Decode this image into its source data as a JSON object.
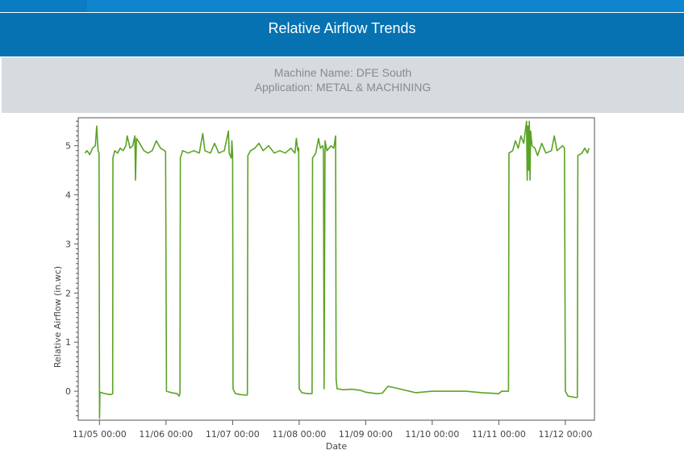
{
  "header": {
    "title": "Relative Airflow Trends"
  },
  "info": {
    "machine_name": "Machine Name: DFE South",
    "application": "Application: METAL & MACHINING"
  },
  "colors": {
    "header": "#0672b2",
    "topbar": "#0e85cc",
    "info_band": "#d5dbde",
    "series": "#5aa324"
  },
  "chart_data": {
    "type": "line",
    "title": "",
    "xlabel": "Date",
    "ylabel": "Relative Airflow (in.wc)",
    "ylim": [
      -0.59,
      5.57
    ],
    "xlim": [
      "11/04 16:20",
      "11/12 10:30"
    ],
    "yticks": [
      0,
      1,
      2,
      3,
      4,
      5
    ],
    "xticks": [
      "11/05 00:00",
      "11/06 00:00",
      "11/07 00:00",
      "11/08 00:00",
      "11/09 00:00",
      "11/10 00:00",
      "11/11 00:00",
      "11/12 00:00"
    ],
    "grid": false,
    "series": [
      {
        "points": [
          [
            "11/04 18:43",
            4.85
          ],
          [
            "11/04 19:30",
            4.9
          ],
          [
            "11/04 20:30",
            4.82
          ],
          [
            "11/04 21:30",
            4.95
          ],
          [
            "11/04 22:30",
            5.0
          ],
          [
            "11/04 23:00",
            5.4
          ],
          [
            "11/04 23:30",
            4.9
          ],
          [
            "11/04 23:50",
            4.85
          ],
          [
            "11/05 00:00",
            -0.55
          ],
          [
            "11/05 00:10",
            -0.02
          ],
          [
            "11/05 02:00",
            -0.05
          ],
          [
            "11/05 04:00",
            -0.07
          ],
          [
            "11/05 04:45",
            -0.05
          ],
          [
            "11/05 04:50",
            4.75
          ],
          [
            "11/05 05:30",
            4.9
          ],
          [
            "11/05 06:30",
            4.85
          ],
          [
            "11/05 07:30",
            4.95
          ],
          [
            "11/05 08:30",
            4.9
          ],
          [
            "11/05 09:30",
            5.0
          ],
          [
            "11/05 10:00",
            5.2
          ],
          [
            "11/05 11:00",
            4.95
          ],
          [
            "11/05 12:00",
            5.0
          ],
          [
            "11/05 12:45",
            5.2
          ],
          [
            "11/05 13:00",
            4.3
          ],
          [
            "11/05 13:20",
            5.15
          ],
          [
            "11/05 14:30",
            5.05
          ],
          [
            "11/05 16:00",
            4.9
          ],
          [
            "11/05 17:30",
            4.85
          ],
          [
            "11/05 19:00",
            4.9
          ],
          [
            "11/05 20:30",
            5.1
          ],
          [
            "11/05 22:00",
            4.95
          ],
          [
            "11/05 23:30",
            4.9
          ],
          [
            "11/05 23:50",
            4.88
          ],
          [
            "11/06 00:10",
            0.0
          ],
          [
            "11/06 02:00",
            -0.03
          ],
          [
            "11/06 04:00",
            -0.05
          ],
          [
            "11/06 04:40",
            -0.1
          ],
          [
            "11/06 05:00",
            -0.05
          ],
          [
            "11/06 05:10",
            4.75
          ],
          [
            "11/06 06:00",
            4.9
          ],
          [
            "11/06 08:00",
            4.85
          ],
          [
            "11/06 10:00",
            4.9
          ],
          [
            "11/06 12:00",
            4.85
          ],
          [
            "11/06 13:15",
            5.25
          ],
          [
            "11/06 14:00",
            4.9
          ],
          [
            "11/06 16:00",
            4.85
          ],
          [
            "11/06 17:30",
            5.05
          ],
          [
            "11/06 19:00",
            4.85
          ],
          [
            "11/06 21:00",
            4.9
          ],
          [
            "11/06 22:30",
            5.3
          ],
          [
            "11/06 22:45",
            4.85
          ],
          [
            "11/06 23:30",
            4.75
          ],
          [
            "11/06 23:45",
            5.1
          ],
          [
            "11/07 00:00",
            4.8
          ],
          [
            "11/07 00:10",
            0.05
          ],
          [
            "11/07 01:00",
            -0.05
          ],
          [
            "11/07 03:00",
            -0.07
          ],
          [
            "11/07 05:00",
            -0.08
          ],
          [
            "11/07 05:20",
            -0.07
          ],
          [
            "11/07 05:30",
            4.8
          ],
          [
            "11/07 06:30",
            4.9
          ],
          [
            "11/07 08:00",
            4.95
          ],
          [
            "11/07 09:30",
            5.05
          ],
          [
            "11/07 11:00",
            4.9
          ],
          [
            "11/07 13:00",
            5.0
          ],
          [
            "11/07 15:00",
            4.85
          ],
          [
            "11/07 17:00",
            4.9
          ],
          [
            "11/07 19:00",
            4.85
          ],
          [
            "11/07 21:00",
            4.95
          ],
          [
            "11/07 22:30",
            4.85
          ],
          [
            "11/07 23:00",
            5.15
          ],
          [
            "11/07 23:30",
            4.9
          ],
          [
            "11/07 23:50",
            4.95
          ],
          [
            "11/08 00:00",
            0.05
          ],
          [
            "11/08 01:00",
            -0.03
          ],
          [
            "11/08 03:00",
            -0.05
          ],
          [
            "11/08 04:40",
            -0.05
          ],
          [
            "11/08 04:50",
            4.75
          ],
          [
            "11/08 06:00",
            4.85
          ],
          [
            "11/08 07:00",
            5.15
          ],
          [
            "11/08 07:40",
            4.95
          ],
          [
            "11/08 08:30",
            5.0
          ],
          [
            "11/08 08:45",
            4.9
          ],
          [
            "11/08 09:00",
            0.05
          ],
          [
            "11/08 09:20",
            5.1
          ],
          [
            "11/08 10:00",
            4.9
          ],
          [
            "11/08 11:30",
            5.0
          ],
          [
            "11/08 12:30",
            4.95
          ],
          [
            "11/08 13:10",
            5.2
          ],
          [
            "11/08 13:20",
            0.25
          ],
          [
            "11/08 13:40",
            0.05
          ],
          [
            "11/08 16:00",
            0.03
          ],
          [
            "11/08 19:00",
            0.04
          ],
          [
            "11/08 22:00",
            0.02
          ],
          [
            "11/09 00:00",
            -0.02
          ],
          [
            "11/09 04:00",
            -0.05
          ],
          [
            "11/09 06:00",
            -0.04
          ],
          [
            "11/09 08:00",
            0.1
          ],
          [
            "11/09 12:00",
            0.05
          ],
          [
            "11/09 18:00",
            -0.03
          ],
          [
            "11/10 00:00",
            0.0
          ],
          [
            "11/10 06:00",
            0.0
          ],
          [
            "11/10 12:00",
            0.0
          ],
          [
            "11/10 18:00",
            -0.03
          ],
          [
            "11/11 00:00",
            -0.05
          ],
          [
            "11/11 01:00",
            0.0
          ],
          [
            "11/11 03:30",
            0.0
          ],
          [
            "11/11 03:40",
            4.85
          ],
          [
            "11/11 05:00",
            4.9
          ],
          [
            "11/11 06:00",
            5.1
          ],
          [
            "11/11 07:00",
            4.95
          ],
          [
            "11/11 08:00",
            5.2
          ],
          [
            "11/11 09:00",
            5.05
          ],
          [
            "11/11 10:00",
            5.5
          ],
          [
            "11/11 10:15",
            4.3
          ],
          [
            "11/11 10:30",
            5.4
          ],
          [
            "11/11 10:45",
            4.5
          ],
          [
            "11/11 11:00",
            5.5
          ],
          [
            "11/11 11:15",
            4.3
          ],
          [
            "11/11 11:30",
            5.3
          ],
          [
            "11/11 12:00",
            5.0
          ],
          [
            "11/11 13:00",
            4.95
          ],
          [
            "11/11 14:00",
            4.8
          ],
          [
            "11/11 15:30",
            5.05
          ],
          [
            "11/11 17:00",
            4.85
          ],
          [
            "11/11 19:00",
            4.9
          ],
          [
            "11/11 20:00",
            5.2
          ],
          [
            "11/11 21:00",
            4.9
          ],
          [
            "11/11 23:00",
            5.0
          ],
          [
            "11/11 23:40",
            4.95
          ],
          [
            "11/12 00:00",
            0.0
          ],
          [
            "11/12 01:00",
            -0.1
          ],
          [
            "11/12 04:00",
            -0.13
          ],
          [
            "11/12 04:20",
            -0.12
          ],
          [
            "11/12 04:30",
            4.8
          ],
          [
            "11/12 06:00",
            4.85
          ],
          [
            "11/12 07:00",
            4.95
          ],
          [
            "11/12 08:00",
            4.85
          ],
          [
            "11/12 08:30",
            4.95
          ]
        ]
      }
    ]
  }
}
